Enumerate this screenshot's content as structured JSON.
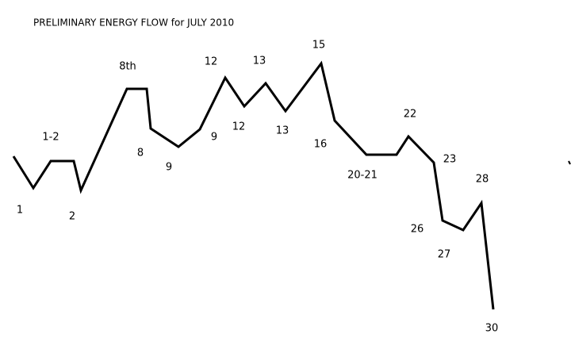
{
  "title": "PRELIMINARY ENERGY FLOW for JULY 2010",
  "labels": [
    "1",
    "1-2",
    "2",
    "8th",
    "8",
    "9",
    "12",
    "9",
    "12",
    "13",
    "13",
    "15",
    "16",
    "20-21",
    "22",
    "23",
    "26",
    "27",
    "28",
    "30"
  ]
}
